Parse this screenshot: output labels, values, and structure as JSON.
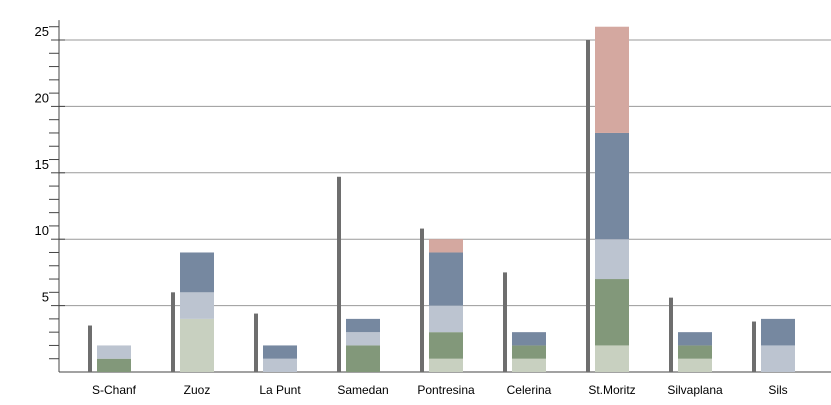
{
  "chart_data": {
    "type": "bar",
    "title": "",
    "xlabel": "",
    "ylabel": "",
    "ylim": [
      0,
      26.5
    ],
    "grid": true,
    "legend": "none",
    "y_ticks": [
      5,
      10,
      15,
      20,
      25
    ],
    "categories": [
      "S-Chanf",
      "Zuoz",
      "La Punt",
      "Samedan",
      "Pontresina",
      "Celerina",
      "St.Moritz",
      "Silvaplana",
      "Sils"
    ],
    "line_values": [
      3.5,
      6.0,
      4.4,
      14.7,
      10.8,
      7.5,
      25.0,
      5.6,
      3.8
    ],
    "series": [
      {
        "values": [
          0,
          4,
          0,
          0,
          1,
          1,
          2,
          1,
          0
        ],
        "color": "#c8d0c0"
      },
      {
        "values": [
          1,
          0,
          0,
          2,
          2,
          1,
          5,
          1,
          0
        ],
        "color": "#82987a"
      },
      {
        "values": [
          1,
          2,
          1,
          1,
          2,
          0,
          3,
          0,
          2
        ],
        "color": "#bcc4d0"
      },
      {
        "values": [
          0,
          3,
          1,
          1,
          4,
          1,
          8,
          1,
          2
        ],
        "color": "#7688a0"
      },
      {
        "values": [
          0,
          0,
          0,
          0,
          1,
          0,
          8,
          0,
          0
        ],
        "color": "#d4a8a0"
      }
    ],
    "line_color": "#6e6e6e",
    "grid_color": "#9a9a9a",
    "axis_color": "#444444"
  }
}
